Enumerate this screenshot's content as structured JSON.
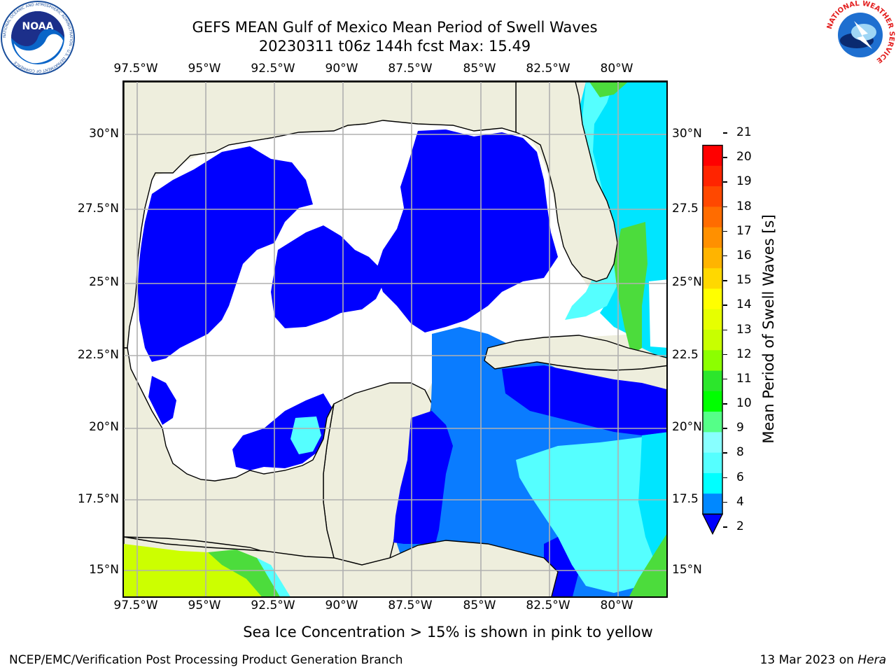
{
  "header": {
    "title_line1": "GEFS MEAN Gulf of Mexico Mean Period of Swell Waves",
    "title_line2": "20230311 t06z 144h fcst   Max: 15.49"
  },
  "map": {
    "lon_labels": [
      "97.5°W",
      "95°W",
      "92.5°W",
      "90°W",
      "87.5°W",
      "85°W",
      "82.5°W",
      "80°W"
    ],
    "lat_labels_left": [
      "30°N",
      "27.5°N",
      "25°N",
      "22.5°N",
      "20°N",
      "17.5°N",
      "15°N"
    ],
    "lat_labels_right": [
      "30°N",
      "27.5",
      "25°N",
      "22.5",
      "20°N",
      "17.5",
      "15°N"
    ],
    "colors": {
      "land": "#eeeedd",
      "ocean_white": "#ffffff",
      "deep_blue": "#0000ff",
      "mid_blue": "#0a7cff",
      "cyan": "#00e5ff",
      "light_cyan": "#55ffff",
      "green": "#4cdc3c",
      "lime": "#ccff00",
      "coast": "#000000",
      "grid": "#b0b0b0"
    }
  },
  "colorbar": {
    "label": "Mean Period of Swell Waves [s]",
    "ticks": [
      "21",
      "20",
      "19",
      "18",
      "17",
      "16",
      "15",
      "14",
      "13",
      "12",
      "11",
      "10",
      "9",
      "8",
      "6",
      "4",
      "2"
    ],
    "colors": [
      "#ff0000",
      "#ff2400",
      "#ff4800",
      "#ff6c00",
      "#ff9000",
      "#ffb400",
      "#ffd800",
      "#ffff00",
      "#e6ff00",
      "#c8ff00",
      "#8cff00",
      "#2ce62c",
      "#00ff00",
      "#55ff88",
      "#88ffff",
      "#55ffff",
      "#00ffff",
      "#0088ff"
    ]
  },
  "note": "Sea Ice Concentration > 15% is shown in pink to yellow",
  "footer": {
    "left": "NCEP/EMC/Verification Post Processing Product Generation Branch",
    "right_date": "13 Mar 2023 on ",
    "right_host": "Hera"
  },
  "logos": {
    "noaa_text": "NOAA",
    "noaa_ring": "NATIONAL OCEANIC AND ATMOSPHERIC ADMINISTRATION · U.S. DEPARTMENT OF COMMERCE",
    "nws_ring": "NATIONAL WEATHER SERVICE"
  }
}
